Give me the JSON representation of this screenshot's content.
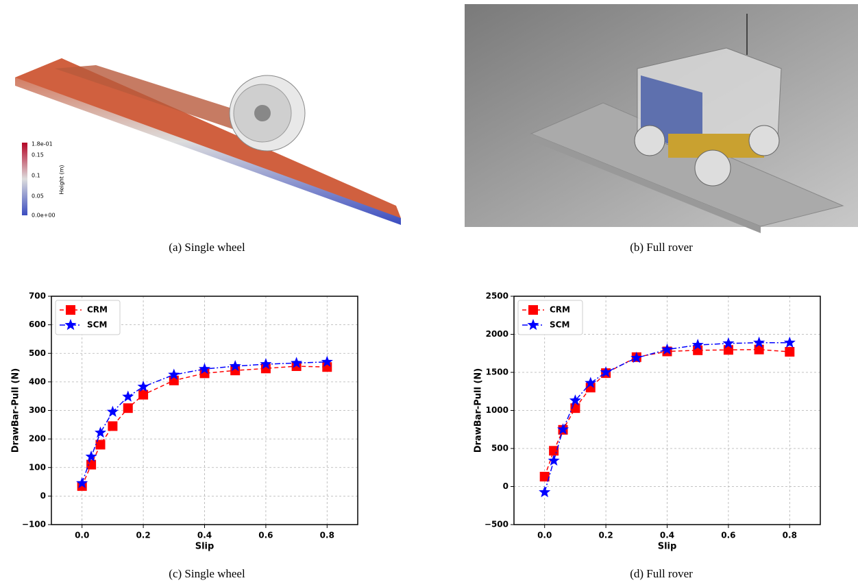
{
  "figure": {
    "panels": [
      {
        "caption": "(a) Single wheel",
        "colorbar": {
          "label": "Height (m)",
          "ticks": [
            "1.8e-01",
            "0.15",
            "0.1",
            "0.05",
            "0.0e+00"
          ]
        }
      },
      {
        "caption": "(b) Full rover"
      }
    ]
  },
  "chart_data": [
    {
      "type": "line",
      "caption": "(c) Single wheel",
      "x_label": "Slip",
      "y_label": "DrawBar-Pull (N)",
      "x": [
        0,
        0.03,
        0.06,
        0.1,
        0.15,
        0.2,
        0.3,
        0.4,
        0.5,
        0.6,
        0.7,
        0.8
      ],
      "series": [
        {
          "name": "CRM",
          "color": "#ff0000",
          "marker": "square",
          "linestyle": "dashed",
          "values": [
            35,
            110,
            180,
            245,
            308,
            355,
            405,
            430,
            440,
            447,
            455,
            452
          ]
        },
        {
          "name": "SCM",
          "color": "#0000ff",
          "marker": "star",
          "linestyle": "dashdot",
          "values": [
            45,
            138,
            222,
            295,
            348,
            383,
            425,
            445,
            455,
            462,
            466,
            470
          ]
        }
      ],
      "xlim": [
        -0.1,
        0.9
      ],
      "ylim": [
        -100,
        700
      ],
      "xticks": [
        {
          "value": 0,
          "label": "0.0"
        },
        0.2,
        0.4,
        0.6,
        0.8
      ],
      "yticks": [
        {
          "value": -100,
          "label": "−100"
        },
        0,
        100,
        200,
        300,
        400,
        500,
        600,
        700
      ],
      "grid": true,
      "legend": "upper left"
    },
    {
      "type": "line",
      "caption": "(d) Full rover",
      "x_label": "Slip",
      "y_label": "DrawBar-Pull (N)",
      "x": [
        0,
        0.03,
        0.06,
        0.1,
        0.15,
        0.2,
        0.3,
        0.4,
        0.5,
        0.6,
        0.7,
        0.8
      ],
      "series": [
        {
          "name": "CRM",
          "color": "#ff0000",
          "marker": "square",
          "linestyle": "dashed",
          "values": [
            130,
            470,
            745,
            1030,
            1300,
            1490,
            1700,
            1775,
            1790,
            1795,
            1800,
            1770
          ]
        },
        {
          "name": "SCM",
          "color": "#0000ff",
          "marker": "star",
          "linestyle": "dashdot",
          "values": [
            -75,
            340,
            750,
            1130,
            1360,
            1500,
            1690,
            1800,
            1860,
            1880,
            1890,
            1890
          ]
        }
      ],
      "xlim": [
        -0.1,
        0.9
      ],
      "ylim": [
        -500,
        2500
      ],
      "xticks": [
        {
          "value": 0,
          "label": "0.0"
        },
        0.2,
        0.4,
        0.6,
        0.8
      ],
      "yticks": [
        {
          "value": -500,
          "label": "−500"
        },
        0,
        500,
        1000,
        1500,
        2000,
        2500
      ],
      "grid": true,
      "legend": "upper left"
    }
  ]
}
